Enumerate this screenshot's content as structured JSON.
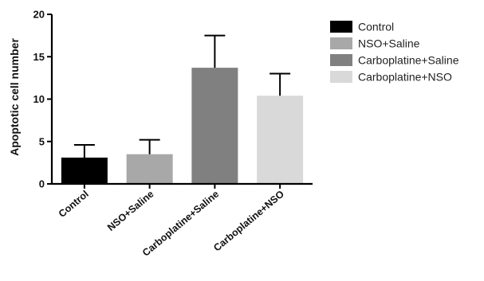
{
  "chart_data": {
    "type": "bar",
    "title": "",
    "xlabel": "",
    "ylabel": "Apoptotic cell number",
    "ylim": [
      0,
      20
    ],
    "yticks": [
      0,
      5,
      10,
      15,
      20
    ],
    "grid": false,
    "legend_position": "right",
    "categories": [
      "Control",
      "NSO+Saline",
      "Carboplatine+Saline",
      "Carboplatine+NSO"
    ],
    "values": [
      3.1,
      3.5,
      13.7,
      10.4
    ],
    "errors": [
      1.5,
      1.7,
      3.8,
      2.6
    ],
    "colors": [
      "#000000",
      "#a8a8a8",
      "#808080",
      "#d9d9d9"
    ],
    "legend": [
      "Control",
      "NSO+Saline",
      "Carboplatine+Saline",
      "Carboplatine+NSO"
    ]
  }
}
